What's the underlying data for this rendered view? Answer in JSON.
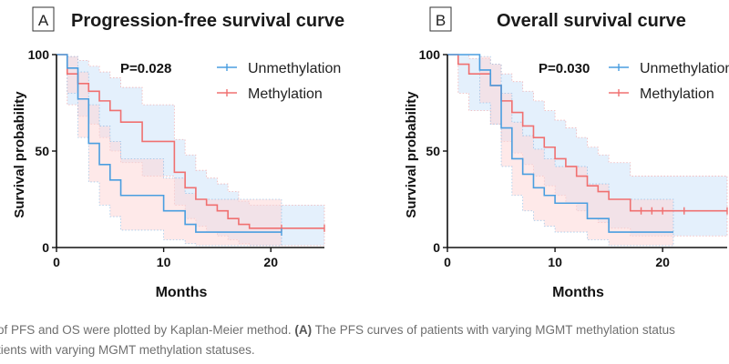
{
  "chart_data": [
    {
      "type": "line",
      "panel": "A",
      "title": "Progression-free survival curve",
      "xlabel": "Months",
      "ylabel": "Survival probability",
      "xlim": [
        0,
        25
      ],
      "ylim": [
        0,
        100
      ],
      "xticks": [
        0,
        10,
        20
      ],
      "yticks": [
        0,
        50,
        100
      ],
      "p_value": "P=0.028",
      "legend_position": "top-right",
      "series": [
        {
          "name": "Unmethylation",
          "color": "#4a9ee0",
          "x": [
            0,
            1,
            2,
            3,
            4,
            5,
            6,
            7,
            8,
            10,
            11,
            12,
            13,
            15,
            17,
            20,
            21
          ],
          "y": [
            100,
            93,
            77,
            54,
            43,
            35,
            27,
            27,
            27,
            19,
            19,
            12,
            8,
            8,
            8,
            8,
            8
          ],
          "ci_lower": [
            100,
            80,
            57,
            34,
            22,
            16,
            9,
            9,
            9,
            4,
            4,
            2,
            1,
            1,
            1,
            1,
            1
          ],
          "ci_upper": [
            100,
            99,
            91,
            74,
            63,
            55,
            46,
            46,
            46,
            36,
            36,
            28,
            25,
            25,
            25,
            25,
            25
          ],
          "censor_x": [
            21
          ],
          "censor_y": [
            8
          ]
        },
        {
          "name": "Methylation",
          "color": "#f07070",
          "x": [
            0,
            1,
            2,
            3,
            4,
            5,
            6,
            7,
            8,
            10,
            11,
            12,
            13,
            14,
            15,
            16,
            17,
            18,
            21,
            25
          ],
          "y": [
            100,
            90,
            85,
            81,
            76,
            71,
            65,
            65,
            55,
            55,
            39,
            31,
            25,
            22,
            19,
            15,
            12,
            10,
            10,
            10
          ],
          "ci_lower": [
            100,
            74,
            68,
            64,
            57,
            50,
            44,
            44,
            37,
            37,
            22,
            15,
            11,
            8,
            6,
            4,
            2,
            1,
            1,
            1
          ],
          "ci_upper": [
            100,
            99,
            97,
            94,
            91,
            88,
            83,
            83,
            74,
            74,
            56,
            48,
            40,
            36,
            33,
            29,
            24,
            22,
            22,
            22
          ],
          "censor_x": [
            21,
            25
          ],
          "censor_y": [
            10,
            10
          ]
        }
      ]
    },
    {
      "type": "line",
      "panel": "B",
      "title": "Overall survival curve",
      "xlabel": "Months",
      "ylabel": "Survival probability",
      "xlim": [
        0,
        26
      ],
      "ylim": [
        0,
        100
      ],
      "xticks": [
        0,
        10,
        20
      ],
      "yticks": [
        0,
        50,
        100
      ],
      "p_value": "P=0.030",
      "legend_position": "top-right",
      "series": [
        {
          "name": "Unmethylation",
          "color": "#4a9ee0",
          "x": [
            0,
            1,
            2,
            3,
            4,
            5,
            6,
            7,
            8,
            9,
            10,
            11,
            12,
            13,
            15,
            18,
            21
          ],
          "y": [
            100,
            100,
            100,
            92,
            84,
            62,
            46,
            38,
            31,
            27,
            23,
            23,
            23,
            15,
            8,
            8,
            8
          ],
          "ci_lower": [
            100,
            100,
            100,
            75,
            64,
            42,
            27,
            19,
            14,
            11,
            8,
            8,
            8,
            4,
            1,
            1,
            1
          ],
          "ci_upper": [
            100,
            100,
            100,
            99,
            95,
            80,
            65,
            58,
            51,
            46,
            42,
            42,
            42,
            33,
            25,
            25,
            25
          ],
          "censor_x": [],
          "censor_y": []
        },
        {
          "name": "Methylation",
          "color": "#f07070",
          "x": [
            0,
            1,
            2,
            3,
            4,
            5,
            6,
            7,
            8,
            9,
            10,
            11,
            12,
            13,
            14,
            15,
            16,
            17,
            20,
            26
          ],
          "y": [
            100,
            95,
            90,
            90,
            84,
            76,
            70,
            63,
            57,
            52,
            46,
            42,
            37,
            32,
            29,
            25,
            25,
            19,
            19,
            19
          ],
          "ci_lower": [
            100,
            80,
            71,
            71,
            64,
            55,
            49,
            43,
            37,
            32,
            27,
            23,
            19,
            15,
            13,
            10,
            10,
            6,
            6,
            6
          ],
          "ci_upper": [
            100,
            100,
            98,
            98,
            95,
            90,
            86,
            81,
            76,
            71,
            66,
            62,
            57,
            52,
            48,
            44,
            44,
            37,
            37,
            37
          ],
          "censor_x": [
            18,
            19,
            20,
            22,
            26
          ],
          "censor_y": [
            19,
            19,
            19,
            19,
            19
          ]
        }
      ]
    }
  ],
  "caption": {
    "line1_start": "of PFS and OS were plotted by Kaplan-Meier method. ",
    "line1_bold": "(A)",
    "line1_end": " The PFS curves of patients with varying MGMT methylation status",
    "line2": "tients with varying MGMT methylation statuses."
  }
}
